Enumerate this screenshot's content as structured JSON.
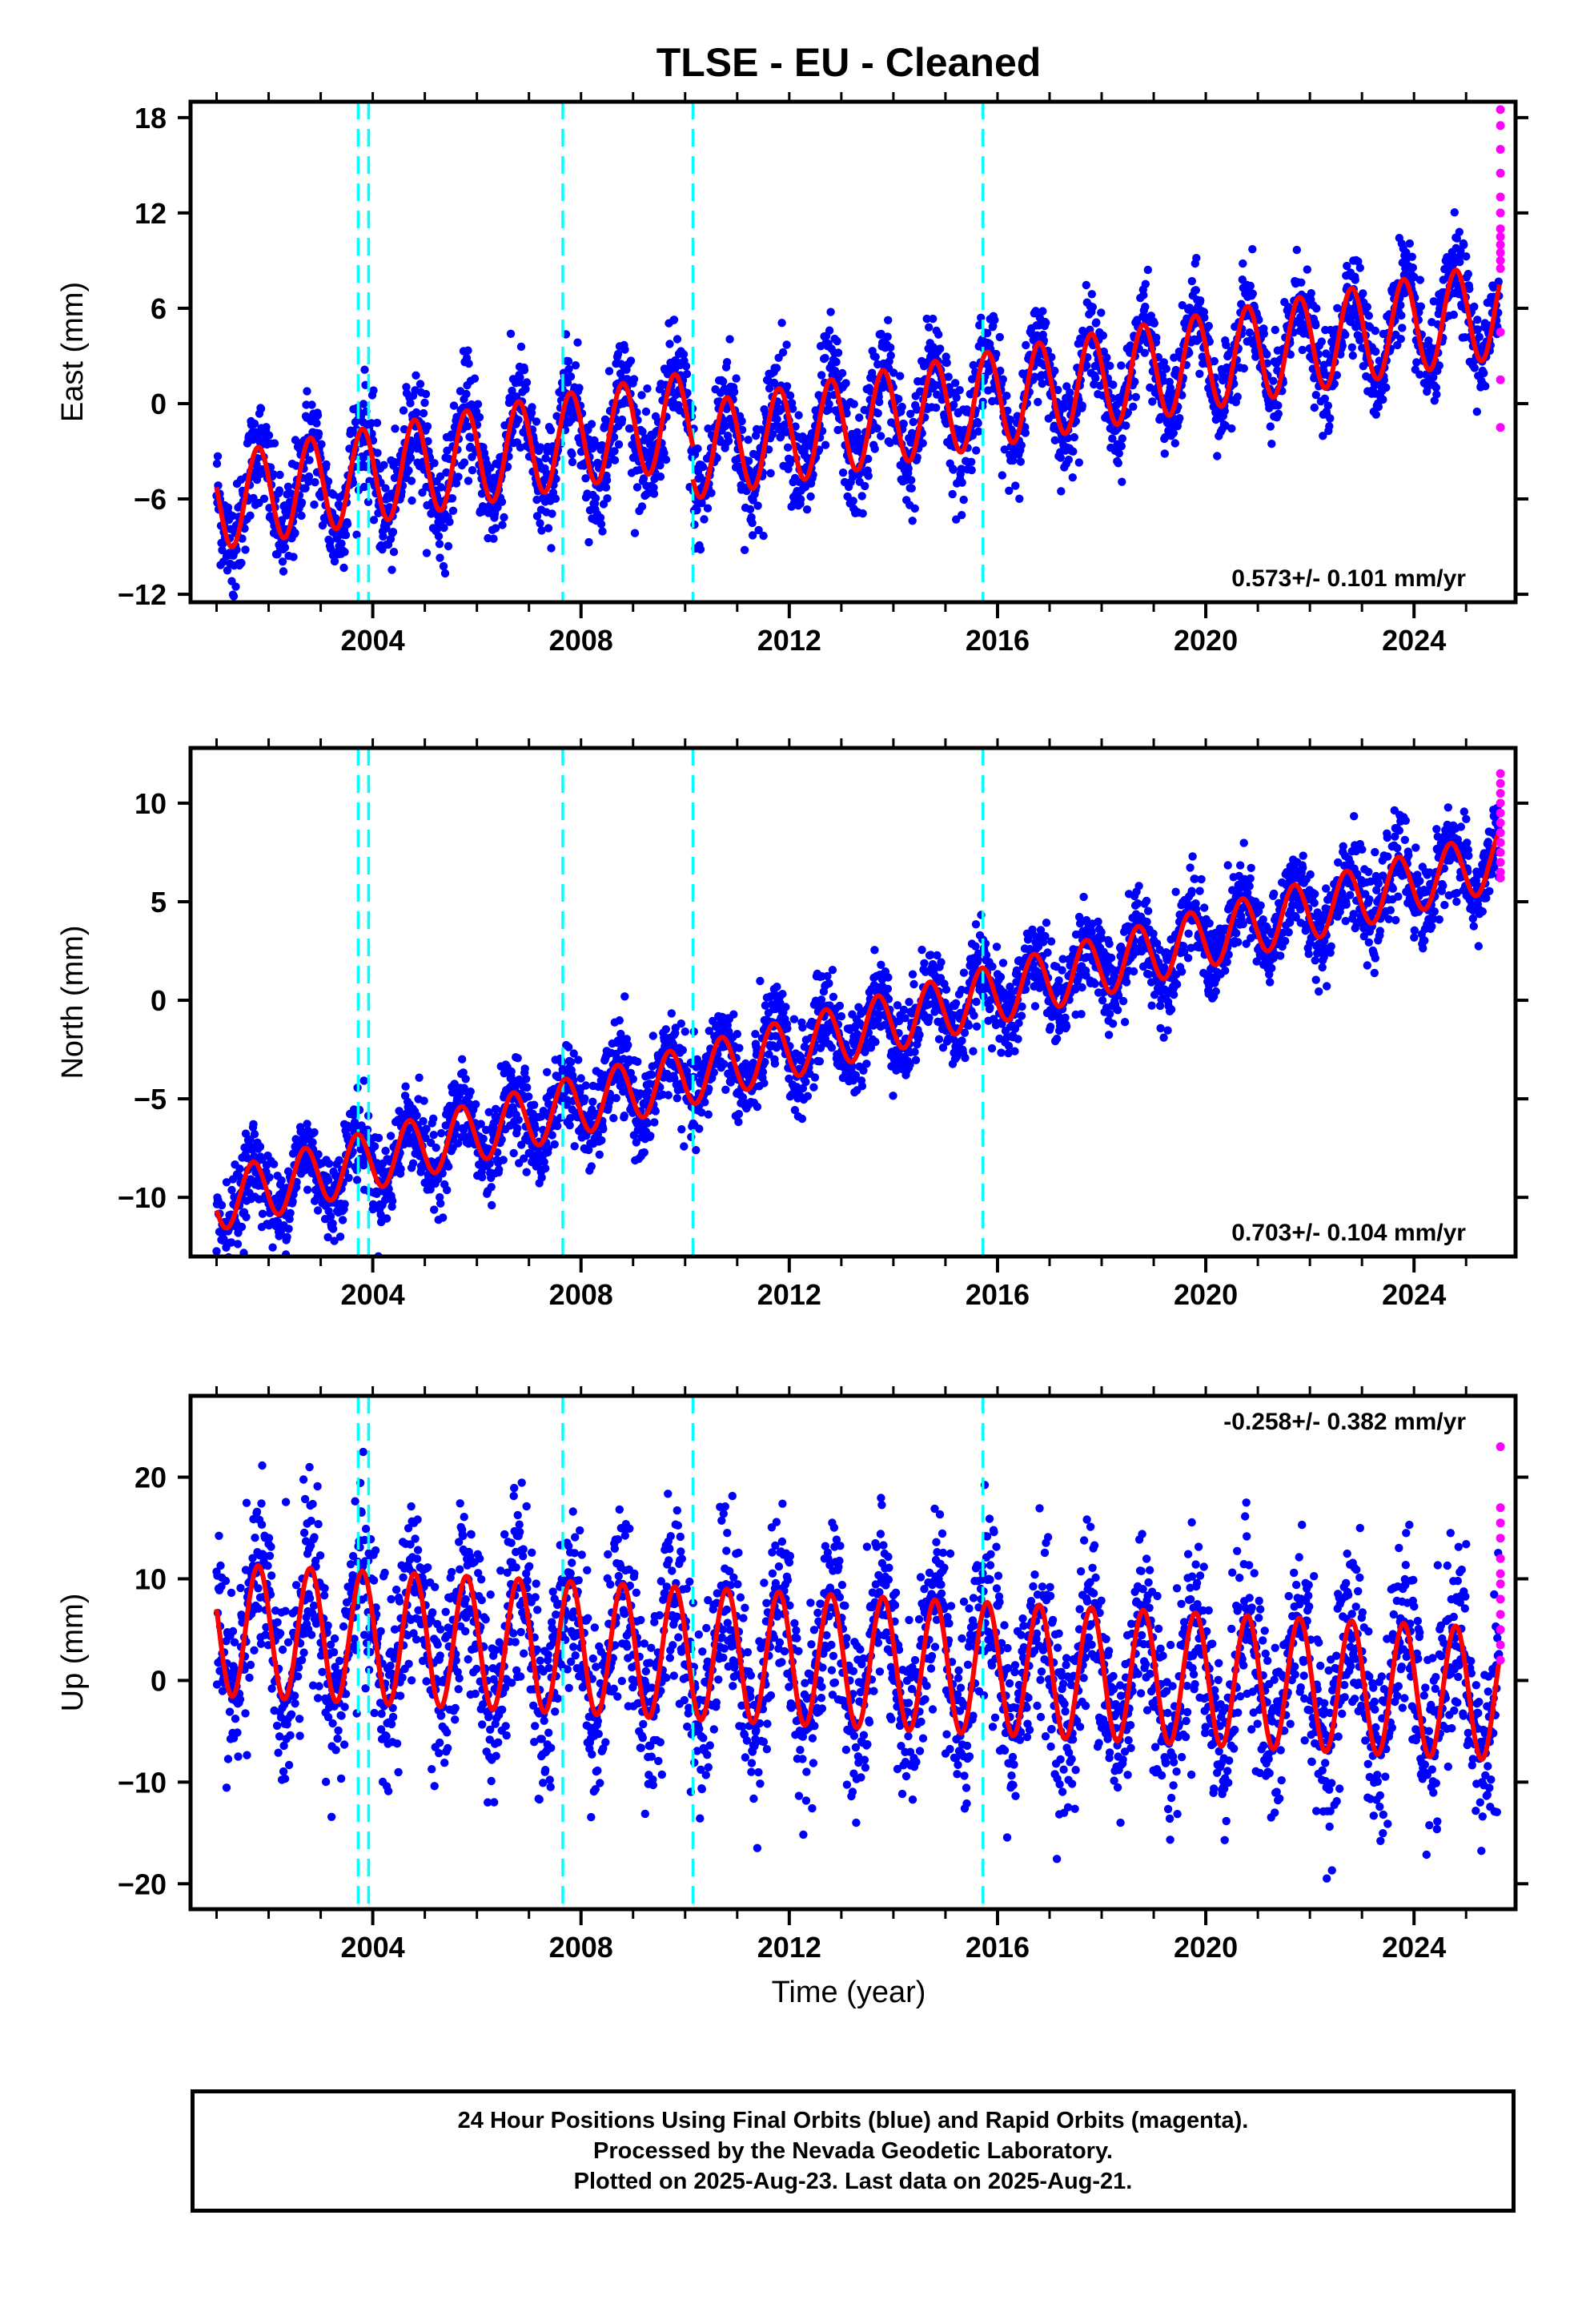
{
  "title": "TLSE  - EU - Cleaned",
  "x_axis_label": "Time (year)",
  "footer": {
    "line1": "24 Hour Positions Using Final Orbits (blue) and Rapid Orbits (magenta).",
    "line2": "Processed by the Nevada Geodetic Laboratory.",
    "line3": "Plotted on 2025-Aug-23. Last data on 2025-Aug-21."
  },
  "colors": {
    "final": "#0000ff",
    "rapid": "#ff00ff",
    "model": "#ff0000",
    "events": "#00ffff"
  },
  "chart_data": [
    {
      "type": "scatter",
      "component": "east",
      "ylabel": "East (mm)",
      "xlim": [
        2000.5,
        2025.95
      ],
      "ylim": [
        -12.5,
        19
      ],
      "yticks": [
        -12,
        -6,
        0,
        6,
        12,
        18
      ],
      "xticks": [
        2004,
        2008,
        2012,
        2016,
        2020,
        2024
      ],
      "grid": false,
      "rate_label": "0.573+/- 0.101 mm/yr",
      "rate_position": "bottom-right",
      "event_lines": [
        2003.72,
        2003.92,
        2007.65,
        2010.15,
        2015.72
      ],
      "segments": [
        {
          "start": 2001.0,
          "end": 2010.15,
          "offset": -6.2,
          "slope": 0.573,
          "amplitude": 3.0,
          "phase": 0.55,
          "scatter": 1.7
        },
        {
          "start": 2010.15,
          "end": 2015.72,
          "offset": -3.0,
          "slope": 0.573,
          "amplitude": 3.0,
          "phase": 0.55,
          "scatter": 1.8
        },
        {
          "start": 2015.72,
          "end": 2025.64,
          "offset": 0.2,
          "slope": 0.573,
          "amplitude": 3.0,
          "phase": 0.55,
          "scatter": 1.4
        }
      ],
      "rapid_values": [
        18.5,
        17.5,
        16,
        14.5,
        13,
        12,
        11,
        10.5,
        10,
        9.5,
        9,
        8.5,
        4.5,
        1.5,
        -1.5
      ]
    },
    {
      "type": "scatter",
      "component": "north",
      "ylabel": "North (mm)",
      "xlim": [
        2000.5,
        2025.95
      ],
      "ylim": [
        -13,
        12.8
      ],
      "yticks": [
        -10,
        -5,
        0,
        5,
        10
      ],
      "xticks": [
        2004,
        2008,
        2012,
        2016,
        2020,
        2024
      ],
      "grid": false,
      "rate_label": "0.703+/- 0.104 mm/yr",
      "rate_position": "bottom-right",
      "event_lines": [
        2003.72,
        2003.92,
        2007.65,
        2010.15,
        2015.72
      ],
      "segments": [
        {
          "start": 2001.0,
          "end": 2025.64,
          "offset": -10.2,
          "slope": 0.703,
          "amplitude": 1.5,
          "phase": 0.45,
          "scatter": 1.1
        }
      ],
      "rapid_values": [
        11.5,
        11,
        10.5,
        10,
        9.5,
        9,
        8.5,
        8,
        7.5,
        7,
        6.5,
        6.2
      ]
    },
    {
      "type": "scatter",
      "component": "up",
      "ylabel": "Up (mm)",
      "xlim": [
        2000.5,
        2025.95
      ],
      "ylim": [
        -22.5,
        28
      ],
      "yticks": [
        -20,
        -10,
        0,
        10,
        20
      ],
      "xticks": [
        2004,
        2008,
        2012,
        2016,
        2020,
        2024
      ],
      "grid": false,
      "rate_label": "-0.258+/- 0.382 mm/yr",
      "rate_position": "top-right",
      "event_lines": [
        2003.72,
        2003.92,
        2007.65,
        2010.15,
        2015.72
      ],
      "segments": [
        {
          "start": 2001.0,
          "end": 2025.64,
          "offset": 5.0,
          "slope": -0.258,
          "amplitude": 6.5,
          "phase": 0.55,
          "scatter": 4.5
        }
      ],
      "rapid_values": [
        23,
        17,
        15.5,
        14,
        12,
        10.5,
        9.5,
        8,
        6.5,
        5,
        3.5,
        2
      ]
    }
  ]
}
